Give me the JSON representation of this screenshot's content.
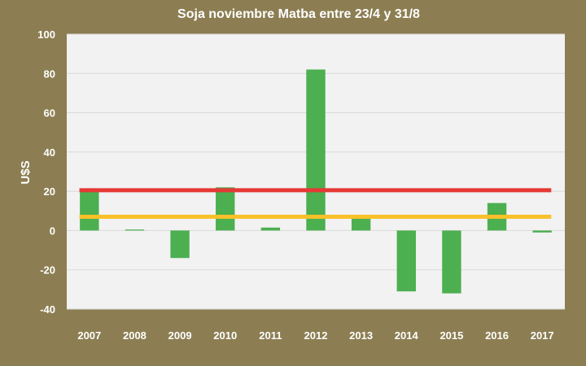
{
  "chart_data": {
    "type": "bar",
    "title": "Soja noviembre Matba entre 23/4 y 31/8",
    "xlabel": "",
    "ylabel": "U$S",
    "categories": [
      "2007",
      "2008",
      "2009",
      "2010",
      "2011",
      "2012",
      "2013",
      "2014",
      "2015",
      "2016",
      "2017"
    ],
    "series": [
      {
        "values": [
          21,
          0.5,
          -14,
          22,
          1.5,
          82,
          6,
          -31,
          -32,
          14,
          -1
        ],
        "color": "#4caf50"
      }
    ],
    "reference_lines": [
      {
        "value": 20.5,
        "color": "#e53935"
      },
      {
        "value": 7,
        "color": "#f9c02a"
      }
    ],
    "ylim": [
      -40,
      100
    ],
    "yticks": [
      -40,
      -20,
      0,
      20,
      40,
      60,
      80,
      100
    ],
    "grid": true,
    "legend": "none",
    "colors": {
      "background": "#8c7e52",
      "plot": "#f2f2f2",
      "grid": "#d9d9d9",
      "text": "#ffffff"
    }
  }
}
